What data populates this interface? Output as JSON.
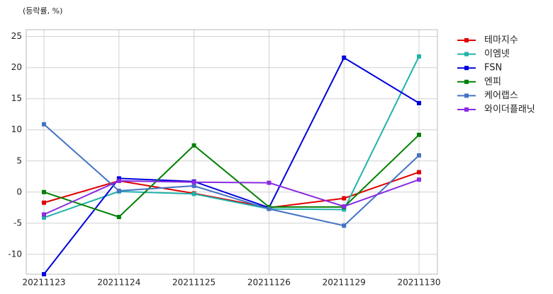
{
  "chart_data": {
    "type": "line",
    "y_label": "(등락률, %)",
    "categories": [
      "20211123",
      "20211124",
      "20211125",
      "20211126",
      "20211129",
      "20211130"
    ],
    "series": [
      {
        "name": "테마지수",
        "color": "#e00000",
        "values": [
          -1.7,
          1.8,
          -0.2,
          -2.5,
          -1.0,
          3.2
        ]
      },
      {
        "name": "이엠넷",
        "color": "#20b2aa",
        "values": [
          -4.1,
          0.1,
          -0.3,
          -2.7,
          -2.8,
          21.8
        ]
      },
      {
        "name": "FSN",
        "color": "#0000dd",
        "values": [
          -13.2,
          2.2,
          1.7,
          -2.5,
          21.6,
          14.3
        ]
      },
      {
        "name": "엔피",
        "color": "#008000",
        "values": [
          0,
          -4.0,
          7.5,
          -2.4,
          -2.4,
          9.2
        ]
      },
      {
        "name": "케어랩스",
        "color": "#4472c4",
        "values": [
          10.9,
          0.2,
          1.0,
          -2.7,
          -5.4,
          5.9
        ]
      },
      {
        "name": "와이더플래닛",
        "color": "#8a2be2",
        "values": [
          -3.6,
          1.8,
          1.6,
          1.5,
          -2.3,
          2.0
        ]
      }
    ],
    "ylim": [
      -13.2,
      26.1
    ],
    "yticks": [
      -10,
      -5,
      0,
      5,
      10,
      15,
      20,
      25
    ],
    "grid": true,
    "legend": "right"
  }
}
